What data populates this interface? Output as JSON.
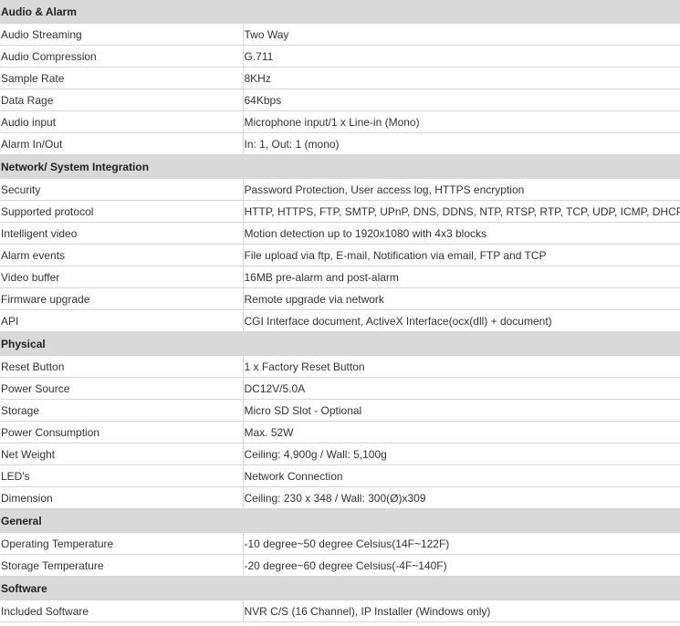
{
  "sections": [
    {
      "title": "Audio & Alarm",
      "rows": [
        [
          "Audio Streaming",
          "Two Way"
        ],
        [
          "Audio Compression",
          "G.711"
        ],
        [
          "Sample Rate",
          "8KHz"
        ],
        [
          "Data Rage",
          "64Kbps"
        ],
        [
          "Audio input",
          "Microphone input/1 x Line-in (Mono)"
        ],
        [
          "Alarm In/Out",
          "In: 1, Out: 1 (mono)"
        ]
      ]
    },
    {
      "title": "Network/ System Integration",
      "rows": [
        [
          "Security",
          "Password Protection, User access log, HTTPS encryption"
        ],
        [
          "Supported protocol",
          "HTTP, HTTPS, FTP, SMTP, UPnP, DNS, DDNS, NTP, RTSP, RTP, TCP, UDP, ICMP, DHCP"
        ],
        [
          "Intelligent video",
          "Motion detection up to 1920x1080 with 4x3 blocks"
        ],
        [
          "Alarm events",
          "File upload via ftp, E-mail, Notification via email, FTP and TCP"
        ],
        [
          "Video buffer",
          "16MB pre-alarm and post-alarm"
        ],
        [
          "Firmware upgrade",
          "Remote upgrade via network"
        ],
        [
          "API",
          "CGI Interface document, ActiveX Interface(ocx(dll) + document)"
        ]
      ]
    },
    {
      "title": "Physical",
      "rows": [
        [
          "Reset Button",
          "1 x Factory Reset Button"
        ],
        [
          "Power Source",
          "DC12V/5.0A"
        ],
        [
          "Storage",
          "Micro SD Slot - Optional"
        ],
        [
          "Power Consumption",
          "Max. 52W"
        ],
        [
          "Net Weight",
          "Ceiling: 4,900g  / Wall: 5,100g"
        ],
        [
          "LED's",
          "Network Connection"
        ],
        [
          "Dimension",
          "Ceiling: 230 x 348   / Wall: 300(Ø)x309"
        ]
      ]
    },
    {
      "title": "General",
      "rows": [
        [
          "Operating Temperature",
          "-10 degree~50 degree Celsius(14F~122F)"
        ],
        [
          "Storage Temperature",
          "-20 degree~60 degree Celsius(-4F~140F)"
        ]
      ]
    },
    {
      "title": "Software",
      "rows": [
        [
          "Included Software",
          "NVR C/S (16 Channel), IP Installer (Windows only)"
        ]
      ]
    }
  ]
}
